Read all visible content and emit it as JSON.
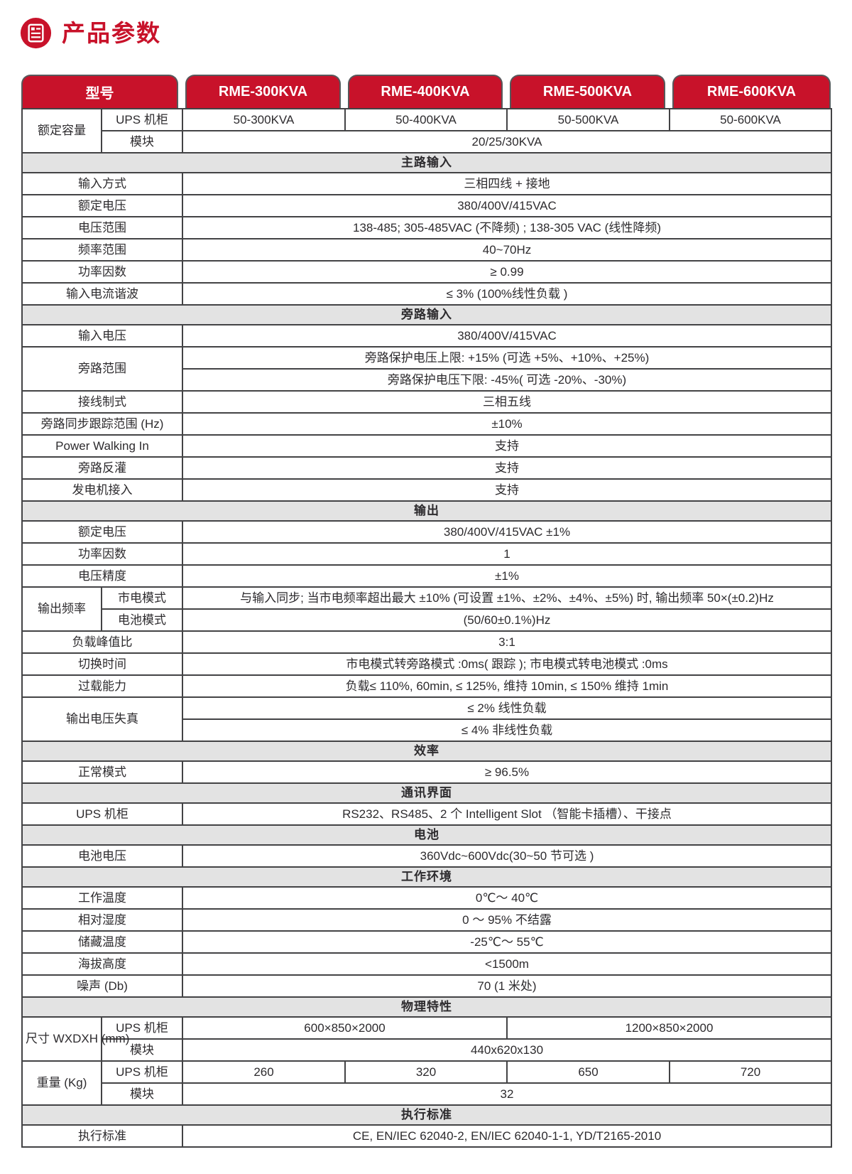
{
  "page": {
    "title": "产品参数"
  },
  "colors": {
    "brand_red": "#c8122a",
    "section_text_red": "#d41e26",
    "section_bg": "#e3e3e3",
    "border": "#434345",
    "text": "#2d2b2e"
  },
  "icons": {
    "title_icon": "document-list-icon"
  },
  "table": {
    "header": {
      "model_column_label": "型号",
      "models": [
        "RME-300KVA",
        "RME-400KVA",
        "RME-500KVA",
        "RME-600KVA"
      ]
    },
    "rows": [
      {
        "label": "额定容量",
        "label_rowspan": 2,
        "sublabel": "UPS 机柜",
        "cells": [
          {
            "text": "50-300KVA"
          },
          {
            "text": "50-400KVA"
          },
          {
            "text": "50-500KVA"
          },
          {
            "text": "50-600KVA"
          }
        ]
      },
      {
        "sublabel": "模块",
        "cells": [
          {
            "text": "20/25/30KVA",
            "span": 4
          }
        ]
      },
      {
        "section": "主路输入"
      },
      {
        "label": "输入方式",
        "cells": [
          {
            "text": "三相四线 + 接地",
            "span": 4
          }
        ]
      },
      {
        "label": "额定电压",
        "cells": [
          {
            "text": "380/400V/415VAC",
            "span": 4
          }
        ]
      },
      {
        "label": "电压范围",
        "cells": [
          {
            "text": "138-485; 305-485VAC (不降频) ; 138-305 VAC (线性降频)",
            "span": 4
          }
        ]
      },
      {
        "label": "频率范围",
        "cells": [
          {
            "text": "40~70Hz",
            "span": 4
          }
        ]
      },
      {
        "label": "功率因数",
        "cells": [
          {
            "text": "≥ 0.99",
            "span": 4
          }
        ]
      },
      {
        "label": "输入电流谐波",
        "cells": [
          {
            "text": "≤ 3% (100%线性负载 )",
            "span": 4
          }
        ]
      },
      {
        "section": "旁路输入"
      },
      {
        "label": "输入电压",
        "cells": [
          {
            "text": "380/400V/415VAC",
            "span": 4
          }
        ]
      },
      {
        "label": "旁路范围",
        "label_rowspan": 2,
        "cells": [
          {
            "text": "旁路保护电压上限: +15% (可选 +5%、+10%、+25%)",
            "span": 4
          }
        ]
      },
      {
        "cells": [
          {
            "text": "旁路保护电压下限: -45%( 可选 -20%、-30%)",
            "span": 4
          }
        ]
      },
      {
        "label": "接线制式",
        "cells": [
          {
            "text": "三相五线",
            "span": 4
          }
        ]
      },
      {
        "label": "旁路同步跟踪范围 (Hz)",
        "cells": [
          {
            "text": "±10%",
            "span": 4
          }
        ]
      },
      {
        "label": "Power Walking In",
        "cells": [
          {
            "text": "支持",
            "span": 4
          }
        ]
      },
      {
        "label": "旁路反灌",
        "cells": [
          {
            "text": "支持",
            "span": 4
          }
        ]
      },
      {
        "label": "发电机接入",
        "cells": [
          {
            "text": "支持",
            "span": 4
          }
        ]
      },
      {
        "section": "输出"
      },
      {
        "label": "额定电压",
        "cells": [
          {
            "text": "380/400V/415VAC ±1%",
            "span": 4
          }
        ]
      },
      {
        "label": "功率因数",
        "cells": [
          {
            "text": "1",
            "span": 4
          }
        ]
      },
      {
        "label": "电压精度",
        "cells": [
          {
            "text": "±1%",
            "span": 4
          }
        ]
      },
      {
        "label": "输出频率",
        "label_rowspan": 2,
        "sublabel": "市电模式",
        "cells": [
          {
            "text": "与输入同步; 当市电频率超出最大 ±10% (可设置 ±1%、±2%、±4%、±5%) 时, 输出频率 50×(±0.2)Hz",
            "span": 4
          }
        ]
      },
      {
        "sublabel": "电池模式",
        "cells": [
          {
            "text": "(50/60±0.1%)Hz",
            "span": 4
          }
        ]
      },
      {
        "label": "负载峰值比",
        "cells": [
          {
            "text": "3:1",
            "span": 4
          }
        ]
      },
      {
        "label": "切换时间",
        "cells": [
          {
            "text": "市电模式转旁路模式 :0ms( 跟踪 ); 市电模式转电池模式 :0ms",
            "span": 4
          }
        ]
      },
      {
        "label": "过载能力",
        "cells": [
          {
            "text": "负载≤ 110%, 60min, ≤ 125%, 维持 10min, ≤ 150% 维持 1min",
            "span": 4
          }
        ]
      },
      {
        "label": "输出电压失真",
        "label_rowspan": 2,
        "cells": [
          {
            "text": "≤ 2% 线性负载",
            "span": 4
          }
        ]
      },
      {
        "cells": [
          {
            "text": "≤ 4% 非线性负载",
            "span": 4
          }
        ]
      },
      {
        "section": "效率"
      },
      {
        "label": "正常模式",
        "cells": [
          {
            "text": "≥ 96.5%",
            "span": 4
          }
        ]
      },
      {
        "section": "通讯界面"
      },
      {
        "label": "UPS 机柜",
        "cells": [
          {
            "text": "RS232、RS485、2 个 Intelligent Slot （智能卡插槽）、干接点",
            "span": 4
          }
        ]
      },
      {
        "section": "电池"
      },
      {
        "label": "电池电压",
        "cells": [
          {
            "text": "360Vdc~600Vdc(30~50 节可选 )",
            "span": 4
          }
        ]
      },
      {
        "section": "工作环境"
      },
      {
        "label": "工作温度",
        "cells": [
          {
            "text": "0℃～ 40℃",
            "span": 4
          }
        ]
      },
      {
        "label": "相对湿度",
        "cells": [
          {
            "text": "0 ～ 95% 不结露",
            "span": 4
          }
        ]
      },
      {
        "label": "储藏温度",
        "cells": [
          {
            "text": "-25℃～ 55℃",
            "span": 4
          }
        ]
      },
      {
        "label": "海拔高度",
        "cells": [
          {
            "text": "<1500m",
            "span": 4
          }
        ]
      },
      {
        "label": "噪声 (Db)",
        "cells": [
          {
            "text": "70 (1 米处)",
            "span": 4
          }
        ]
      },
      {
        "section": "物理特性"
      },
      {
        "label": "尺寸\nWXDXH\n(mm)",
        "label_rowspan": 2,
        "sublabel": "UPS 机柜",
        "cells": [
          {
            "text": "600×850×2000",
            "span": 2
          },
          {
            "text": "1200×850×2000",
            "span": 2
          }
        ]
      },
      {
        "sublabel": "模块",
        "cells": [
          {
            "text": "440x620x130",
            "span": 4
          }
        ]
      },
      {
        "label": "重量 (Kg)",
        "label_rowspan": 2,
        "sublabel": "UPS 机柜",
        "cells": [
          {
            "text": "260"
          },
          {
            "text": "320"
          },
          {
            "text": "650"
          },
          {
            "text": "720"
          }
        ]
      },
      {
        "sublabel": "模块",
        "cells": [
          {
            "text": "32",
            "span": 4
          }
        ]
      },
      {
        "section": "执行标准"
      },
      {
        "label": "执行标准",
        "cells": [
          {
            "text": "CE, EN/IEC 62040-2, EN/IEC 62040-1-1, YD/T2165-2010",
            "span": 4
          }
        ]
      }
    ]
  }
}
